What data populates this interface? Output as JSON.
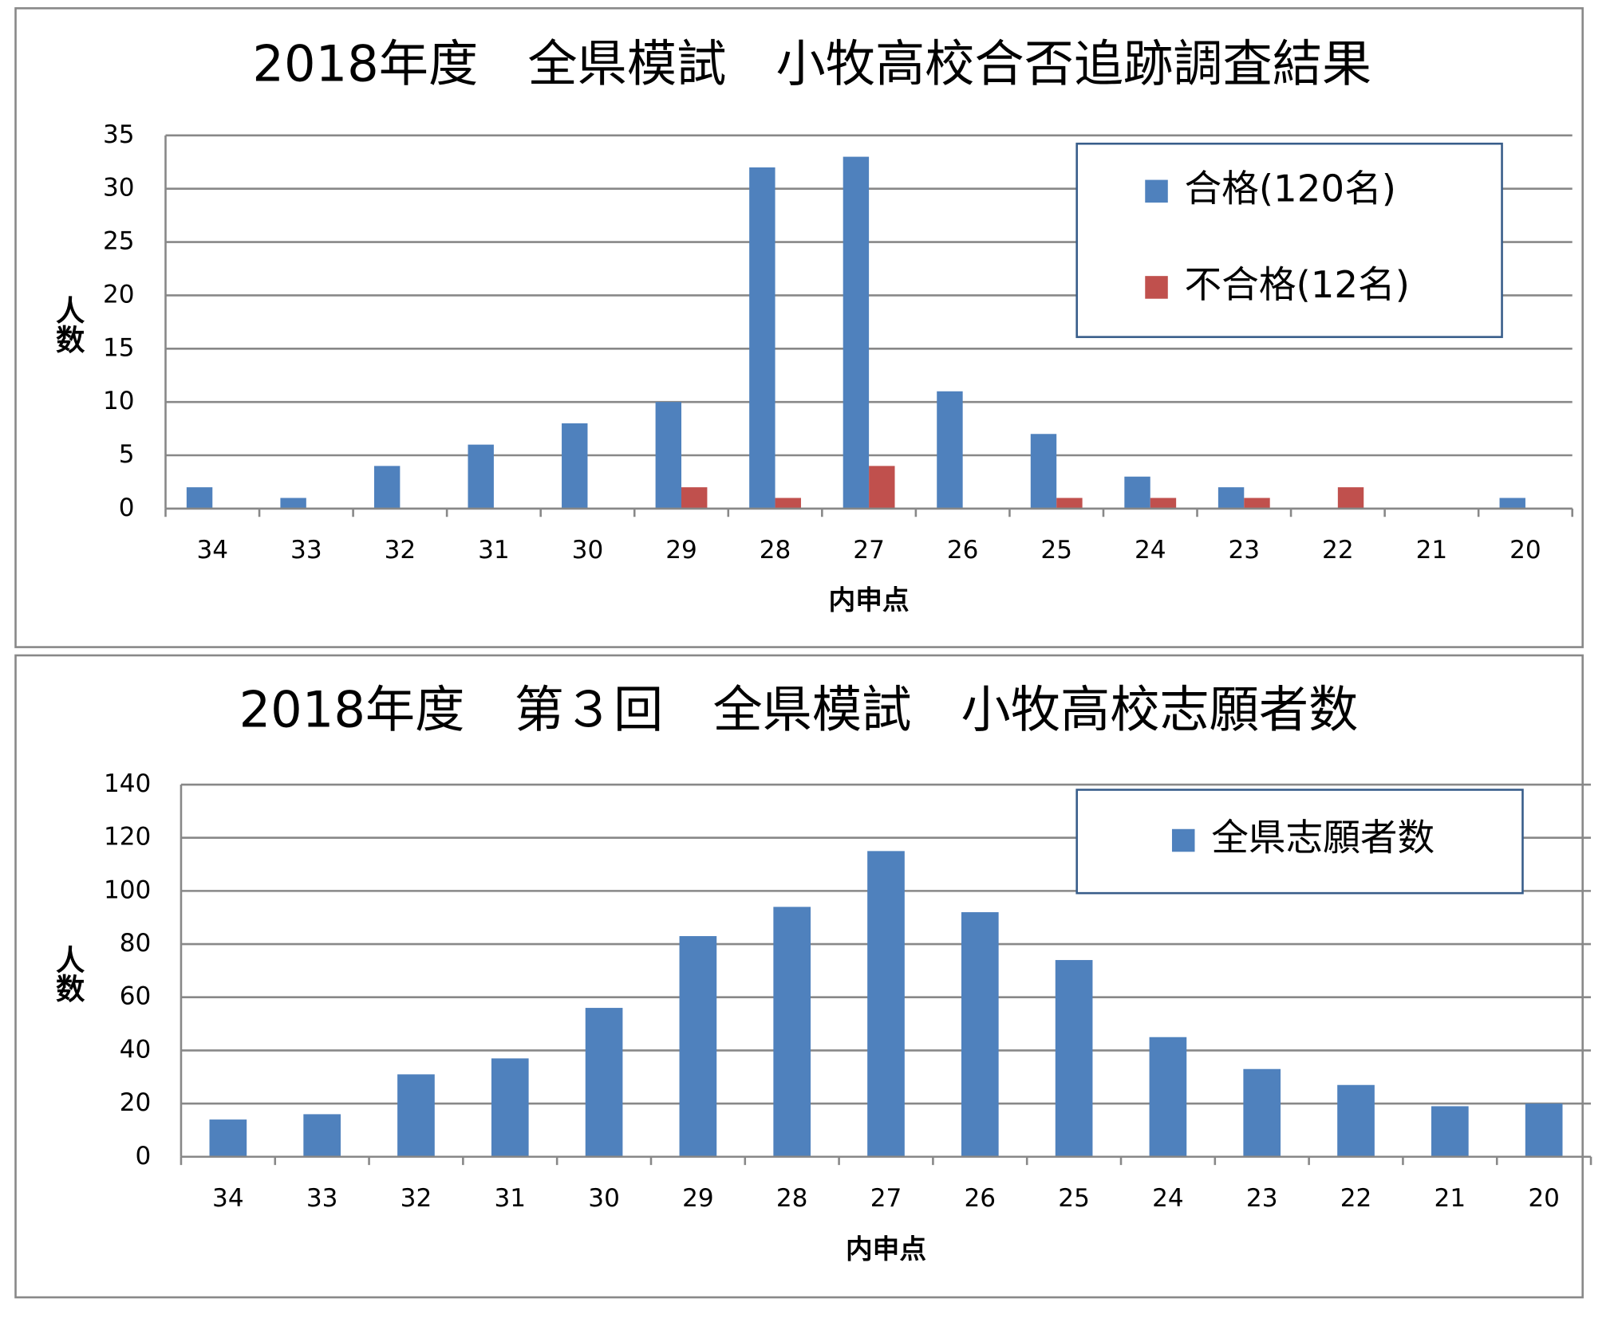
{
  "chart_data": [
    {
      "type": "bar",
      "title": "2018年度　全県模試　小牧高校合否追跡調査結果",
      "categories": [
        "34",
        "33",
        "32",
        "31",
        "30",
        "29",
        "28",
        "27",
        "26",
        "25",
        "24",
        "23",
        "22",
        "21",
        "20"
      ],
      "series": [
        {
          "name": "合格(120名)",
          "color": "#4f81bd",
          "values": [
            2,
            1,
            4,
            6,
            8,
            10,
            32,
            33,
            11,
            7,
            3,
            2,
            0,
            0,
            1
          ]
        },
        {
          "name": "不合格(12名)",
          "color": "#c0504d",
          "values": [
            0,
            0,
            0,
            0,
            0,
            2,
            1,
            4,
            0,
            1,
            1,
            1,
            2,
            0,
            0
          ]
        }
      ],
      "xlabel": "内申点",
      "ylabel": "人数",
      "ylim": [
        0,
        35
      ],
      "yticks": [
        0,
        5,
        10,
        15,
        20,
        25,
        30,
        35
      ],
      "grid": true,
      "legend": "upper right"
    },
    {
      "type": "bar",
      "title": "2018年度　第３回　全県模試　小牧高校志願者数",
      "categories": [
        "34",
        "33",
        "32",
        "31",
        "30",
        "29",
        "28",
        "27",
        "26",
        "25",
        "24",
        "23",
        "22",
        "21",
        "20"
      ],
      "series": [
        {
          "name": "全県志願者数",
          "color": "#4f81bd",
          "values": [
            14,
            16,
            31,
            37,
            56,
            83,
            94,
            115,
            92,
            74,
            45,
            33,
            27,
            19,
            20
          ]
        }
      ],
      "xlabel": "内申点",
      "ylabel": "人数",
      "ylim": [
        0,
        140
      ],
      "yticks": [
        0,
        20,
        40,
        60,
        80,
        100,
        120,
        140
      ],
      "grid": true,
      "legend": "upper right"
    }
  ]
}
